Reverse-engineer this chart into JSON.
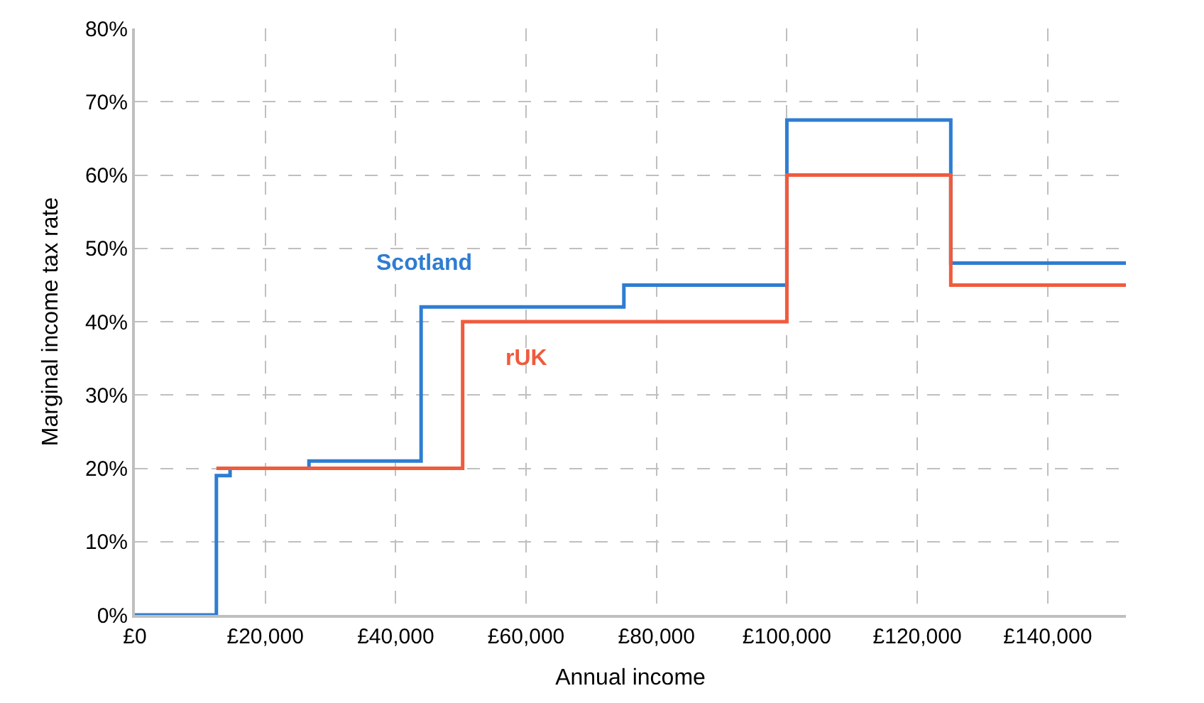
{
  "chart_data": {
    "type": "step",
    "xlabel": "Annual income",
    "ylabel": "Marginal income tax rate",
    "series": [
      {
        "name": "Scotland",
        "color": "#2e7dd1",
        "x": [
          0,
          12500,
          14600,
          26700,
          43900,
          75000,
          100000,
          125140,
          152000
        ],
        "values": [
          0,
          19,
          20,
          21,
          42,
          45,
          67.5,
          48,
          48
        ]
      },
      {
        "name": "rUK",
        "color": "#ef5b3d",
        "x": [
          12500,
          50270,
          100000,
          125140,
          152000
        ],
        "values": [
          20,
          40,
          60,
          45,
          45
        ]
      }
    ],
    "xlim": [
      0,
      152000
    ],
    "ylim": [
      0,
      80
    ],
    "xticks": [
      {
        "value": 0,
        "label": "£0"
      },
      {
        "value": 20000,
        "label": "£20,000"
      },
      {
        "value": 40000,
        "label": "£40,000"
      },
      {
        "value": 60000,
        "label": "£60,000"
      },
      {
        "value": 80000,
        "label": "£80,000"
      },
      {
        "value": 100000,
        "label": "£100,000"
      },
      {
        "value": 120000,
        "label": "£120,000"
      },
      {
        "value": 140000,
        "label": "£140,000"
      }
    ],
    "yticks": [
      {
        "value": 0,
        "label": "0%"
      },
      {
        "value": 10,
        "label": "10%"
      },
      {
        "value": 20,
        "label": "20%"
      },
      {
        "value": 30,
        "label": "30%"
      },
      {
        "value": 40,
        "label": "40%"
      },
      {
        "value": 50,
        "label": "50%"
      },
      {
        "value": 60,
        "label": "60%"
      },
      {
        "value": 70,
        "label": "70%"
      },
      {
        "value": 80,
        "label": "80%"
      }
    ],
    "grid": true,
    "legend": false,
    "line_style": "solid",
    "marker": "none"
  }
}
